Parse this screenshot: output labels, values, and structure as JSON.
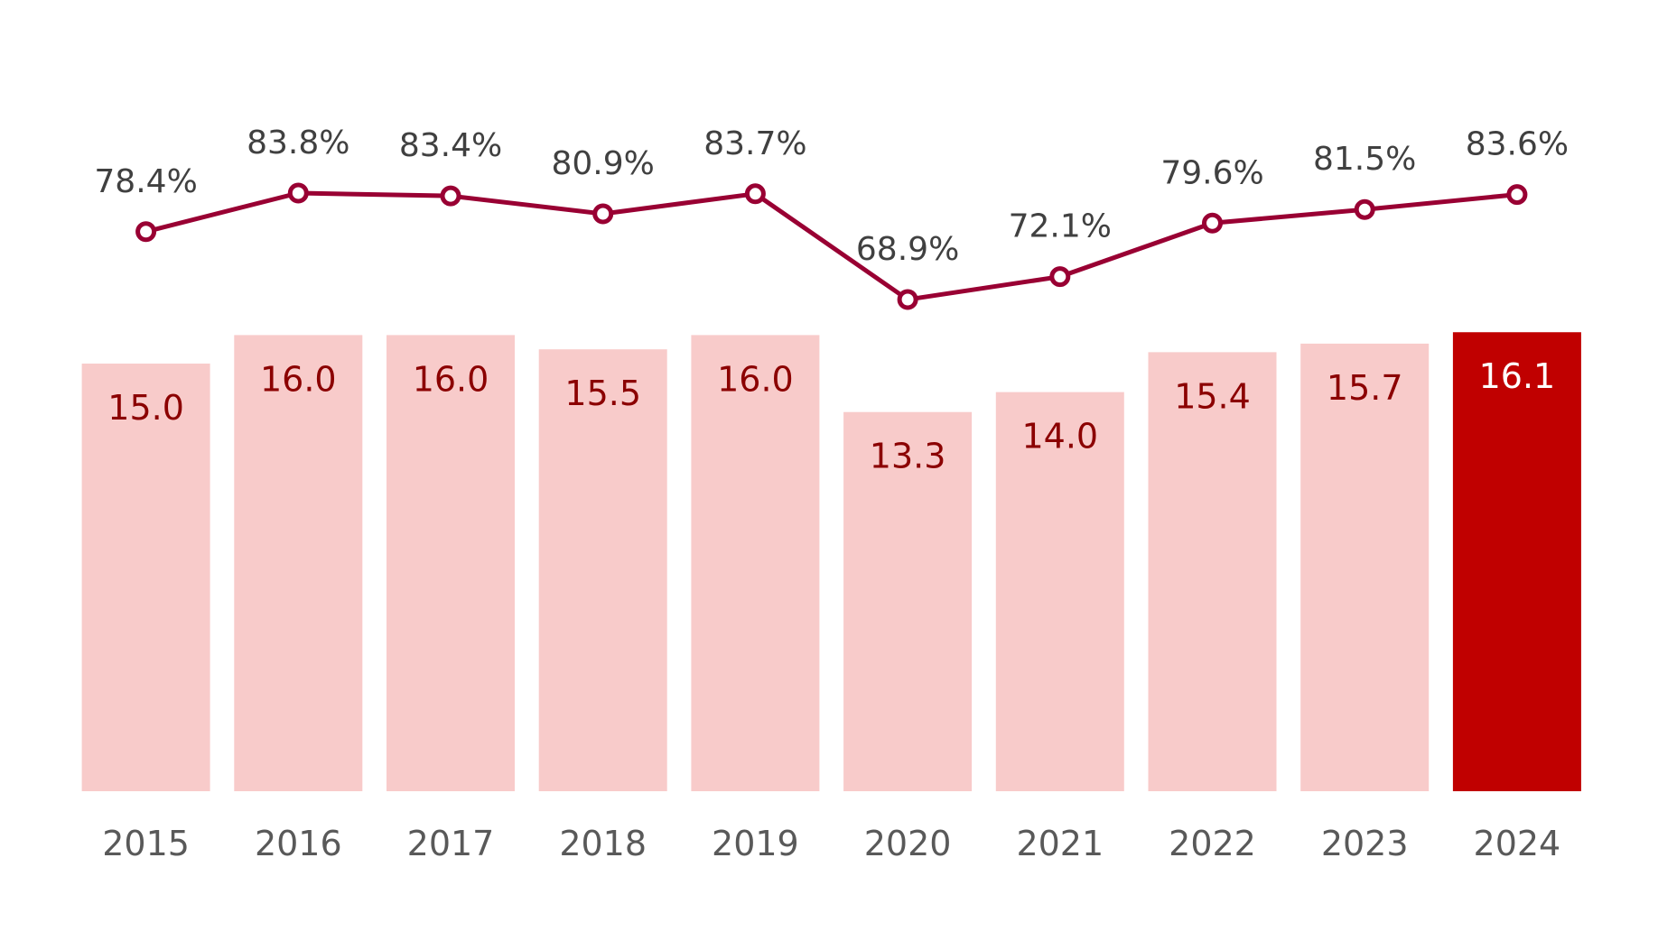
{
  "chart_data": {
    "type": "bar+line",
    "categories": [
      "2015",
      "2016",
      "2017",
      "2018",
      "2019",
      "2020",
      "2021",
      "2022",
      "2023",
      "2024"
    ],
    "series": [
      {
        "type": "bar",
        "values": [
          15.0,
          16.0,
          16.0,
          15.5,
          16.0,
          13.3,
          14.0,
          15.4,
          15.7,
          16.1
        ],
        "labels": [
          "15.0",
          "16.0",
          "16.0",
          "15.5",
          "16.0",
          "13.3",
          "14.0",
          "15.4",
          "15.7",
          "16.1"
        ]
      },
      {
        "type": "line",
        "values": [
          78.4,
          83.8,
          83.4,
          80.9,
          83.7,
          68.9,
          72.1,
          79.6,
          81.5,
          83.6
        ],
        "labels": [
          "78.4%",
          "83.8%",
          "83.4%",
          "80.9%",
          "83.7%",
          "68.9%",
          "72.1%",
          "79.6%",
          "81.5%",
          "83.6%"
        ]
      }
    ],
    "highlight_index": 9,
    "grid": false,
    "legend": "none",
    "colors": {
      "bar": "#F8CBCA",
      "bar_highlight": "#C00000",
      "bar_label": "#8B0000",
      "bar_label_highlight": "#FFFFFF",
      "line": "#990033",
      "line_label": "#404040",
      "axis_label": "#595959"
    }
  }
}
